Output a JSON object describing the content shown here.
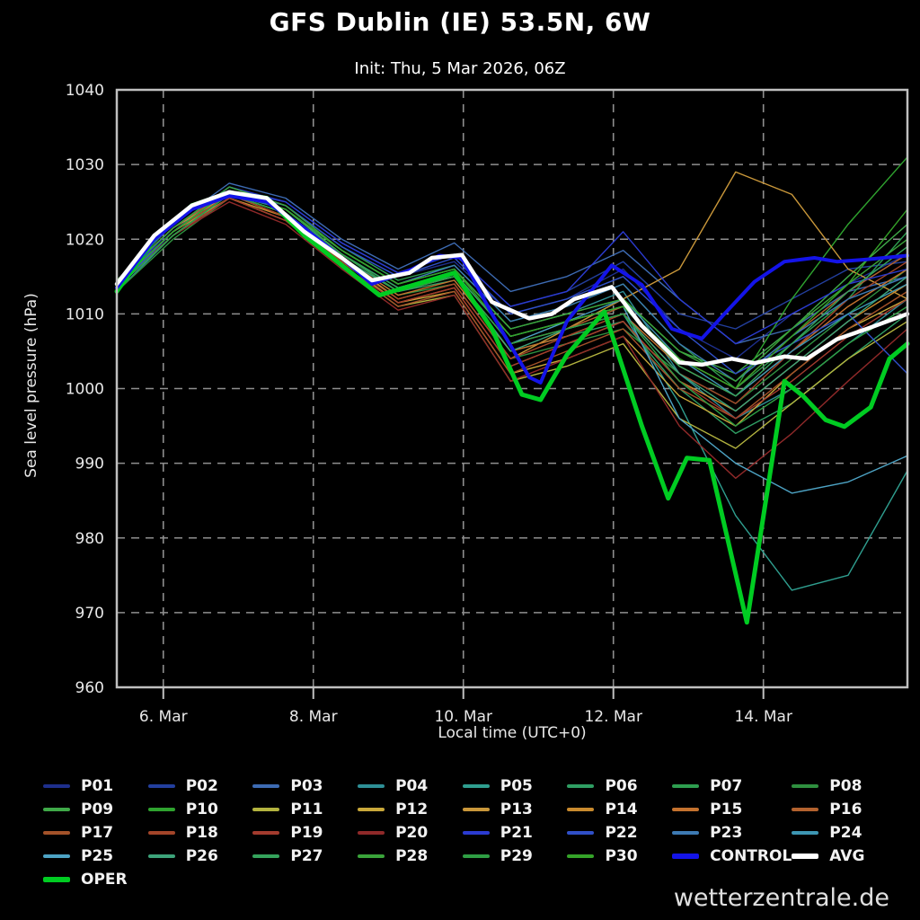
{
  "title": "GFS Dublin (IE) 53.5N, 6W",
  "subtitle": "Init: Thu, 5 Mar 2026, 06Z",
  "watermark": "wetterzentrale.de",
  "chart_data": {
    "type": "line",
    "title": "GFS Dublin (IE) 53.5N, 6W",
    "subtitle": "Init: Thu, 5 Mar 2026, 06Z",
    "xlabel": "Local time (UTC+0)",
    "ylabel": "Sea level pressure (hPa)",
    "ylim": [
      960,
      1040
    ],
    "yticks": [
      960,
      970,
      980,
      990,
      1000,
      1010,
      1020,
      1030,
      1040
    ],
    "grid": "dashed",
    "background": "#000000",
    "grid_color": "#8f8f8f",
    "frame_color": "#c0c0c0",
    "x_axis": {
      "tick_labels": [
        "6. Mar",
        "8. Mar",
        "10. Mar",
        "12. Mar",
        "14. Mar"
      ],
      "tick_days": [
        0.62,
        2.62,
        4.62,
        6.62,
        8.62
      ],
      "range_days": [
        0,
        10.54
      ]
    },
    "main_series": [
      {
        "name": "OPER",
        "color": "#00cc22",
        "width": 5,
        "points": [
          [
            0,
            1013
          ],
          [
            0.5,
            1020
          ],
          [
            1,
            1024.5
          ],
          [
            1.5,
            1026.2
          ],
          [
            2,
            1025.5
          ],
          [
            2.5,
            1020.5
          ],
          [
            3,
            1016.5
          ],
          [
            3.5,
            1012.5
          ],
          [
            4,
            1014
          ],
          [
            4.5,
            1015.5
          ],
          [
            5,
            1008
          ],
          [
            5.4,
            999.2
          ],
          [
            5.65,
            998.5
          ],
          [
            6,
            1004.5
          ],
          [
            6.5,
            1010.3
          ],
          [
            7,
            995
          ],
          [
            7.35,
            985.3
          ],
          [
            7.6,
            990.7
          ],
          [
            7.9,
            990.4
          ],
          [
            8.4,
            968.7
          ],
          [
            8.9,
            1001
          ],
          [
            9.15,
            999
          ],
          [
            9.45,
            995.8
          ],
          [
            9.7,
            994.9
          ],
          [
            10.05,
            997.5
          ],
          [
            10.3,
            1004
          ],
          [
            10.54,
            1006
          ]
        ]
      },
      {
        "name": "CONTROL",
        "color": "#1414e8",
        "width": 4,
        "points": [
          [
            0,
            1013.5
          ],
          [
            0.5,
            1020
          ],
          [
            1,
            1024
          ],
          [
            1.5,
            1025.8
          ],
          [
            2,
            1025
          ],
          [
            2.5,
            1021.5
          ],
          [
            3,
            1017.5
          ],
          [
            3.4,
            1014
          ],
          [
            3.9,
            1015.8
          ],
          [
            4.3,
            1017.8
          ],
          [
            4.6,
            1017.5
          ],
          [
            5,
            1010
          ],
          [
            5.5,
            1001.5
          ],
          [
            5.65,
            1000.8
          ],
          [
            6,
            1009
          ],
          [
            6.6,
            1016.5
          ],
          [
            7,
            1013.9
          ],
          [
            7.4,
            1008
          ],
          [
            7.8,
            1006.7
          ],
          [
            8.1,
            1010
          ],
          [
            8.5,
            1014.3
          ],
          [
            8.9,
            1017
          ],
          [
            9.3,
            1017.5
          ],
          [
            9.6,
            1017
          ],
          [
            10,
            1017.3
          ],
          [
            10.54,
            1017.8
          ]
        ]
      },
      {
        "name": "AVG",
        "color": "#ffffff",
        "width": 4.5,
        "points": [
          [
            0,
            1014
          ],
          [
            0.5,
            1020.5
          ],
          [
            1,
            1024.5
          ],
          [
            1.5,
            1026.3
          ],
          [
            2,
            1025.5
          ],
          [
            2.5,
            1021
          ],
          [
            3,
            1017.5
          ],
          [
            3.4,
            1014.5
          ],
          [
            3.9,
            1015.5
          ],
          [
            4.2,
            1017.5
          ],
          [
            4.6,
            1017.9
          ],
          [
            5,
            1011.6
          ],
          [
            5.5,
            1009.4
          ],
          [
            5.8,
            1010
          ],
          [
            6.1,
            1012
          ],
          [
            6.6,
            1013.6
          ],
          [
            7,
            1008.4
          ],
          [
            7.5,
            1003.5
          ],
          [
            7.8,
            1003.2
          ],
          [
            8.2,
            1004
          ],
          [
            8.5,
            1003.4
          ],
          [
            8.9,
            1004.3
          ],
          [
            9.2,
            1004
          ],
          [
            9.6,
            1006.6
          ],
          [
            10,
            1008
          ],
          [
            10.54,
            1010
          ]
        ]
      }
    ],
    "member_days": [
      0,
      0.75,
      1.5,
      2.25,
      3,
      3.75,
      4.5,
      5.25,
      6,
      6.75,
      7.5,
      8.25,
      9,
      9.75,
      10.54
    ],
    "members": [
      {
        "name": "P01",
        "color": "#1e2f8c",
        "values": [
          1013.5,
          1021,
          1027,
          1024.5,
          1019,
          1015,
          1017,
          1010,
          1012,
          1016,
          1008,
          1004,
          1010,
          1014,
          1018
        ]
      },
      {
        "name": "P02",
        "color": "#233f9e",
        "values": [
          1014,
          1021.5,
          1026.5,
          1025,
          1019.5,
          1015.5,
          1018,
          1011,
          1013,
          1017,
          1010,
          1008,
          1012,
          1016,
          1017
        ]
      },
      {
        "name": "P03",
        "color": "#3d6bb3",
        "values": [
          1014.5,
          1022,
          1027.5,
          1025.5,
          1020,
          1016,
          1019.5,
          1013,
          1015,
          1018.5,
          1012,
          1006,
          1008,
          1013,
          1015
        ]
      },
      {
        "name": "P04",
        "color": "#2e8f96",
        "values": [
          1013,
          1020.5,
          1026,
          1024,
          1018.5,
          1014,
          1016,
          1008,
          1010,
          1013,
          1002,
          996,
          1000,
          1006,
          1012
        ]
      },
      {
        "name": "P05",
        "color": "#2f9e8f",
        "values": [
          1013.5,
          1021,
          1026.5,
          1024,
          1018,
          1013.5,
          1015,
          1006,
          1008,
          1010,
          998,
          983,
          973,
          975,
          989
        ]
      },
      {
        "name": "P06",
        "color": "#2f9e63",
        "values": [
          1014,
          1021,
          1026,
          1023.5,
          1018,
          1013,
          1014.5,
          1005,
          1007,
          1009,
          1000,
          994,
          998,
          1004,
          1010
        ]
      },
      {
        "name": "P07",
        "color": "#2e9e50",
        "values": [
          1014.5,
          1021.5,
          1027,
          1024.5,
          1019,
          1014.5,
          1016.5,
          1009,
          1011,
          1014,
          1006,
          1000,
          1006,
          1012,
          1021
        ]
      },
      {
        "name": "P08",
        "color": "#2f8f3f",
        "values": [
          1013,
          1020,
          1025.5,
          1023,
          1017.5,
          1012.5,
          1014,
          1004,
          1006,
          1008,
          1002,
          998,
          1004,
          1010,
          1016
        ]
      },
      {
        "name": "P09",
        "color": "#3fa948",
        "values": [
          1014,
          1021,
          1026.5,
          1024,
          1018.5,
          1014,
          1016,
          1008,
          1010,
          1012,
          1005,
          1002,
          1008,
          1015,
          1022
        ]
      },
      {
        "name": "P10",
        "color": "#2fa32f",
        "values": [
          1013.5,
          1020.5,
          1026,
          1023.5,
          1018,
          1013.5,
          1015.5,
          1007,
          1009,
          1011,
          1004,
          1000,
          1012,
          1022,
          1031
        ]
      },
      {
        "name": "P11",
        "color": "#b3b33f",
        "values": [
          1014,
          1021,
          1025.5,
          1022.5,
          1016.5,
          1011,
          1012.5,
          1001,
          1003,
          1006,
          996,
          992,
          998,
          1004,
          1009
        ]
      },
      {
        "name": "P12",
        "color": "#c9a83a",
        "values": [
          1014.5,
          1021.5,
          1026,
          1023,
          1017,
          1011.5,
          1013,
          1002,
          1004,
          1007,
          999,
          995,
          1002,
          1008,
          1012
        ]
      },
      {
        "name": "P13",
        "color": "#c9973a",
        "values": [
          1014,
          1021,
          1026,
          1023.5,
          1017.5,
          1012,
          1014,
          1004,
          1008,
          1012,
          1016,
          1029,
          1026,
          1016,
          1012
        ]
      },
      {
        "name": "P14",
        "color": "#c98a2e",
        "values": [
          1013.5,
          1020.5,
          1025.5,
          1023,
          1017,
          1011.5,
          1013.5,
          1003,
          1006,
          1009,
          1001,
          997,
          1003,
          1009,
          1014
        ]
      },
      {
        "name": "P15",
        "color": "#c4722e",
        "values": [
          1014,
          1021,
          1026,
          1023.5,
          1017.5,
          1012.5,
          1014.5,
          1005,
          1007,
          1010,
          1003,
          999,
          1005,
          1011,
          1016
        ]
      },
      {
        "name": "P16",
        "color": "#b3622e",
        "values": [
          1014.5,
          1021.5,
          1026.5,
          1024,
          1018,
          1013,
          1015,
          1006,
          1008,
          1011,
          1004,
          1000,
          1007,
          1013,
          1018
        ]
      },
      {
        "name": "P17",
        "color": "#a35229",
        "values": [
          1013.5,
          1020.5,
          1025.5,
          1022.5,
          1016.5,
          1011,
          1013,
          1002,
          1005,
          1008,
          1000,
          996,
          1002,
          1008,
          1013
        ]
      },
      {
        "name": "P18",
        "color": "#a34529",
        "values": [
          1014,
          1021,
          1026,
          1023,
          1017,
          1012,
          1014,
          1004,
          1007,
          1010,
          1002,
          998,
          1005,
          1012,
          1017
        ]
      },
      {
        "name": "P19",
        "color": "#a33b2e",
        "values": [
          1013.5,
          1020.5,
          1025.5,
          1022.5,
          1016.5,
          1011.5,
          1013.5,
          1003,
          1006,
          1009,
          1001,
          996,
          1001,
          1007,
          1012
        ]
      },
      {
        "name": "P20",
        "color": "#8f2929",
        "values": [
          1014,
          1020.5,
          1025,
          1022,
          1016,
          1010.5,
          1012.5,
          1001,
          1004,
          1007,
          995,
          988,
          994,
          1001,
          1008
        ]
      },
      {
        "name": "P21",
        "color": "#2b3bd1",
        "values": [
          1014,
          1021.5,
          1027,
          1025,
          1019.5,
          1015.5,
          1018,
          1011,
          1013,
          1021,
          1012,
          1006,
          1010,
          1014,
          1016
        ]
      },
      {
        "name": "P22",
        "color": "#3050c8",
        "values": [
          1013.5,
          1021,
          1026.5,
          1024.5,
          1019,
          1015,
          1017.5,
          1010,
          1012,
          1015,
          1008,
          1002,
          1006,
          1010,
          1002
        ]
      },
      {
        "name": "P23",
        "color": "#3d7ab3",
        "values": [
          1014,
          1021,
          1026.5,
          1024,
          1018.5,
          1014,
          1016.5,
          1009,
          1011,
          1014,
          1006,
          1001,
          1007,
          1012,
          1015
        ]
      },
      {
        "name": "P24",
        "color": "#3d96b3",
        "values": [
          1013.5,
          1020.5,
          1026,
          1023.5,
          1018,
          1013.5,
          1015.5,
          1007,
          1009,
          1012,
          1004,
          999,
          1005,
          1010,
          1014
        ]
      },
      {
        "name": "P25",
        "color": "#4da3c4",
        "values": [
          1014,
          1021,
          1026.5,
          1024,
          1018,
          1013,
          1015,
          1006,
          1009,
          1011,
          996,
          990,
          986,
          987.5,
          991
        ]
      },
      {
        "name": "P26",
        "color": "#3da37a",
        "values": [
          1013.5,
          1020.5,
          1026,
          1023.5,
          1017.5,
          1013,
          1015,
          1005,
          1008,
          1010,
          1002,
          997,
          1003,
          1009,
          1015
        ]
      },
      {
        "name": "P27",
        "color": "#35a35c",
        "values": [
          1014,
          1021,
          1026.5,
          1024,
          1018,
          1013.5,
          1015.5,
          1007,
          1009,
          1011,
          1003,
          999,
          1006,
          1013,
          1019
        ]
      },
      {
        "name": "P28",
        "color": "#3aa33a",
        "values": [
          1014.5,
          1021.5,
          1027,
          1024.5,
          1018.5,
          1014,
          1016,
          1008,
          1010,
          1012,
          1005,
          1001,
          1008,
          1014,
          1020
        ]
      },
      {
        "name": "P29",
        "color": "#2f9e44",
        "values": [
          1013.5,
          1020.5,
          1026,
          1023.5,
          1018,
          1013,
          1015,
          1006,
          1008,
          1010,
          1001,
          995,
          1000,
          1006,
          1011
        ]
      },
      {
        "name": "P30",
        "color": "#35a329",
        "values": [
          1014,
          1021,
          1026.5,
          1024,
          1018.5,
          1014,
          1016,
          1007,
          1009,
          1011,
          1004,
          1000,
          1007,
          1014,
          1024
        ]
      }
    ],
    "legend_main_order": [
      "CONTROL",
      "AVG",
      "OPER"
    ]
  }
}
